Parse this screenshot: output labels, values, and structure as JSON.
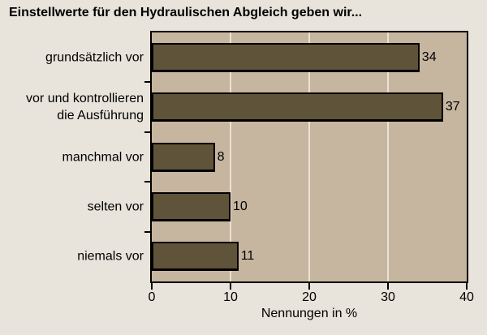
{
  "chart_data": {
    "type": "bar",
    "orientation": "horizontal",
    "title": "Einstellwerte für den Hydraulischen Abgleich geben wir...",
    "categories": [
      "grundsätzlich vor",
      "vor und kontrollieren\ndie Ausführung",
      "manchmal vor",
      "selten vor",
      "niemals vor"
    ],
    "values": [
      34,
      37,
      8,
      10,
      11
    ],
    "value_labels": [
      "34",
      "37",
      "8",
      "10",
      "11"
    ],
    "xlabel": "Nennungen in %",
    "ylabel": "",
    "xlim": [
      0,
      40
    ],
    "xticks": [
      0,
      10,
      20,
      30,
      40
    ],
    "xtick_labels": [
      "0",
      "10",
      "20",
      "30",
      "40"
    ],
    "grid": "vertical gridlines at 10, 20, 30",
    "legend_position": "none"
  },
  "colors": {
    "page_background": "#e8e4db",
    "plot_background": "#c6b59f",
    "bar_fill": "#5f5339",
    "bar_border": "#000000",
    "gridline": "#eae2d5",
    "axis": "#000000",
    "text": "#000000"
  }
}
